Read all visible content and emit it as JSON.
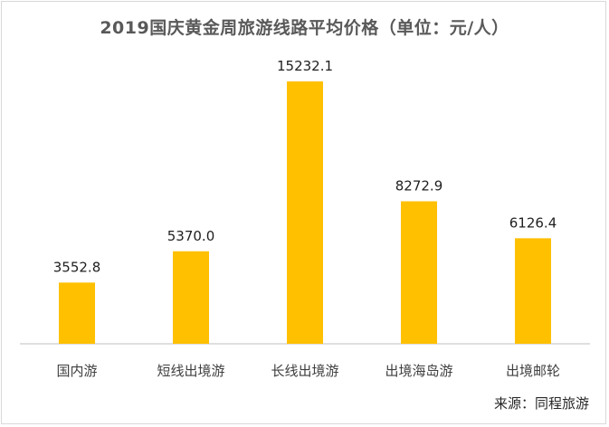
{
  "chart_data": {
    "type": "bar",
    "title": "2019国庆黄金周旅游线路平均价格（单位：元/人）",
    "categories": [
      "国内游",
      "短线出境游",
      "长线出境游",
      "出境海岛游",
      "出境邮轮"
    ],
    "values": [
      3552.8,
      5370.0,
      15232.1,
      8272.9,
      6126.4
    ],
    "data_labels": [
      "3552.8",
      "5370.0",
      "15232.1",
      "8272.9",
      "6126.4"
    ],
    "bar_color": "#FFC000",
    "ylim": [
      0,
      16000
    ],
    "grid": false,
    "legend": "none"
  },
  "source_note": "来源：同程旅游"
}
